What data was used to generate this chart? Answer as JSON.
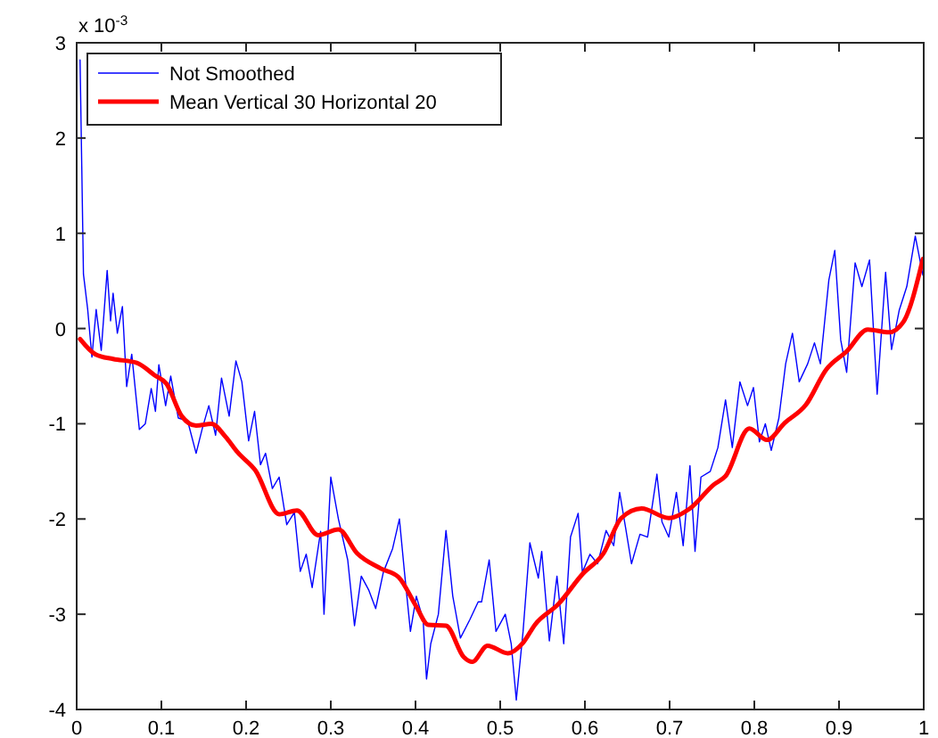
{
  "chart_data": {
    "type": "line",
    "xlim": [
      0,
      1
    ],
    "ylim": [
      -4,
      3
    ],
    "xticks": [
      0,
      0.1,
      0.2,
      0.3,
      0.4,
      0.5,
      0.6,
      0.7,
      0.8,
      0.9,
      1
    ],
    "yticks": [
      -4,
      -3,
      -2,
      -1,
      0,
      1,
      2,
      3
    ],
    "grid": false,
    "legend": "top left",
    "marker": "none",
    "annotations": [
      "x 10$^{-3}$"
    ],
    "series": [
      {
        "name": "Not Smoothed",
        "color": "#0000ff",
        "x": [
          0.004,
          0.006,
          0.008,
          0.013,
          0.018,
          0.023,
          0.029,
          0.036,
          0.04,
          0.043,
          0.048,
          0.054,
          0.059,
          0.065,
          0.074,
          0.081,
          0.088,
          0.093,
          0.097,
          0.105,
          0.111,
          0.12,
          0.131,
          0.141,
          0.148,
          0.156,
          0.164,
          0.171,
          0.18,
          0.188,
          0.195,
          0.203,
          0.21,
          0.217,
          0.223,
          0.231,
          0.239,
          0.248,
          0.257,
          0.264,
          0.271,
          0.278,
          0.288,
          0.292,
          0.3,
          0.309,
          0.32,
          0.328,
          0.336,
          0.345,
          0.353,
          0.362,
          0.373,
          0.381,
          0.387,
          0.394,
          0.401,
          0.409,
          0.413,
          0.418,
          0.427,
          0.436,
          0.444,
          0.453,
          0.464,
          0.474,
          0.478,
          0.487,
          0.495,
          0.506,
          0.513,
          0.519,
          0.527,
          0.535,
          0.545,
          0.549,
          0.558,
          0.567,
          0.575,
          0.583,
          0.592,
          0.597,
          0.606,
          0.615,
          0.625,
          0.634,
          0.641,
          0.648,
          0.655,
          0.665,
          0.674,
          0.685,
          0.691,
          0.699,
          0.708,
          0.716,
          0.724,
          0.73,
          0.737,
          0.748,
          0.757,
          0.766,
          0.774,
          0.783,
          0.792,
          0.799,
          0.806,
          0.813,
          0.82,
          0.829,
          0.837,
          0.845,
          0.853,
          0.863,
          0.871,
          0.878,
          0.888,
          0.895,
          0.902,
          0.909,
          0.919,
          0.927,
          0.936,
          0.945,
          0.955,
          0.962,
          0.971,
          0.98,
          0.99,
          0.999
        ],
        "values": [
          2.82,
          1.7,
          0.57,
          0.2,
          -0.3,
          0.2,
          -0.23,
          0.61,
          0.08,
          0.37,
          -0.05,
          0.23,
          -0.61,
          -0.27,
          -1.06,
          -1.0,
          -0.63,
          -0.87,
          -0.38,
          -0.81,
          -0.5,
          -0.94,
          -0.97,
          -1.31,
          -1.06,
          -0.81,
          -1.12,
          -0.52,
          -0.92,
          -0.34,
          -0.56,
          -1.18,
          -0.87,
          -1.43,
          -1.31,
          -1.68,
          -1.56,
          -2.06,
          -1.93,
          -2.55,
          -2.37,
          -2.72,
          -2.13,
          -3.0,
          -1.56,
          -2.0,
          -2.43,
          -3.12,
          -2.6,
          -2.75,
          -2.94,
          -2.56,
          -2.31,
          -2.0,
          -2.56,
          -3.18,
          -2.81,
          -3.06,
          -3.68,
          -3.31,
          -3.0,
          -2.12,
          -2.81,
          -3.25,
          -3.06,
          -2.87,
          -2.87,
          -2.43,
          -3.18,
          -3.0,
          -3.31,
          -3.9,
          -3.18,
          -2.25,
          -2.62,
          -2.34,
          -3.28,
          -2.6,
          -3.31,
          -2.19,
          -1.94,
          -2.56,
          -2.37,
          -2.47,
          -2.12,
          -2.28,
          -1.72,
          -2.09,
          -2.47,
          -2.16,
          -2.19,
          -1.53,
          -2.03,
          -2.19,
          -1.72,
          -2.28,
          -1.44,
          -2.34,
          -1.56,
          -1.5,
          -1.25,
          -0.75,
          -1.25,
          -0.56,
          -0.81,
          -0.62,
          -1.19,
          -1.0,
          -1.28,
          -0.94,
          -0.37,
          -0.05,
          -0.56,
          -0.37,
          -0.15,
          -0.37,
          0.51,
          0.82,
          -0.12,
          -0.46,
          0.69,
          0.44,
          0.72,
          -0.69,
          0.59,
          -0.22,
          0.19,
          0.44,
          0.97,
          0.56
        ]
      },
      {
        "name": "Mean Vertical 30 Horizontal 20",
        "color": "#ff0000",
        "x": [
          0.004,
          0.022,
          0.043,
          0.071,
          0.092,
          0.106,
          0.124,
          0.141,
          0.159,
          0.176,
          0.19,
          0.211,
          0.239,
          0.26,
          0.285,
          0.309,
          0.331,
          0.359,
          0.38,
          0.401,
          0.415,
          0.436,
          0.457,
          0.467,
          0.485,
          0.509,
          0.527,
          0.541,
          0.569,
          0.597,
          0.622,
          0.643,
          0.667,
          0.699,
          0.724,
          0.752,
          0.766,
          0.794,
          0.815,
          0.836,
          0.861,
          0.885,
          0.909,
          0.934,
          0.959,
          0.976,
          0.999
        ],
        "values": [
          -0.11,
          -0.27,
          -0.32,
          -0.36,
          -0.49,
          -0.58,
          -0.92,
          -1.02,
          -1.0,
          -1.14,
          -1.3,
          -1.49,
          -1.95,
          -1.91,
          -2.17,
          -2.11,
          -2.36,
          -2.52,
          -2.61,
          -2.92,
          -3.11,
          -3.12,
          -3.45,
          -3.5,
          -3.33,
          -3.41,
          -3.3,
          -3.11,
          -2.89,
          -2.58,
          -2.36,
          -1.99,
          -1.89,
          -1.99,
          -1.89,
          -1.64,
          -1.55,
          -1.05,
          -1.17,
          -0.99,
          -0.8,
          -0.43,
          -0.24,
          -0.01,
          -0.04,
          0.07,
          0.73
        ]
      }
    ]
  }
}
